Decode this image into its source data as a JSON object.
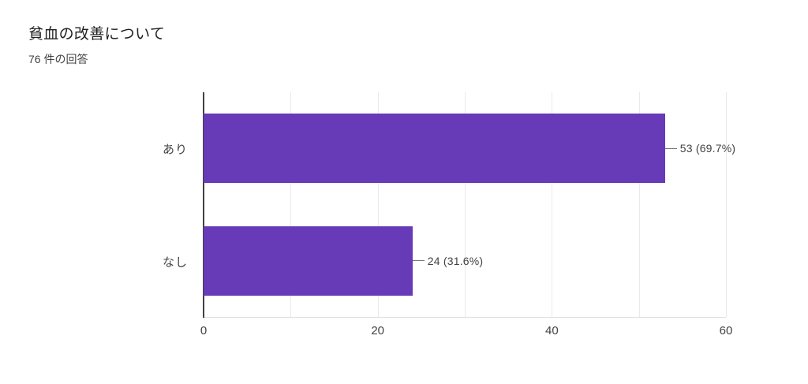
{
  "header": {
    "title": "貧血の改善について",
    "subtitle": "76 件の回答"
  },
  "chart_data": {
    "type": "bar",
    "orientation": "horizontal",
    "title": "貧血の改善について",
    "subtitle": "76 件の回答",
    "total_responses": 76,
    "categories": [
      "あり",
      "なし"
    ],
    "values": [
      53,
      24
    ],
    "percentages": [
      69.7,
      31.6
    ],
    "annotations": [
      "53 (69.7%)",
      "24 (31.6%)"
    ],
    "xlim": [
      0,
      60
    ],
    "xtick_labels": [
      "0",
      "20",
      "40",
      "60"
    ],
    "xtick_values": [
      0,
      20,
      40,
      60
    ],
    "gridline_interval": 10,
    "grid": true,
    "legend": "none",
    "bar_color": "#673ab7",
    "axis_color": "#424242",
    "grid_color": "#e9e9e9",
    "connector_color": "#757575"
  }
}
